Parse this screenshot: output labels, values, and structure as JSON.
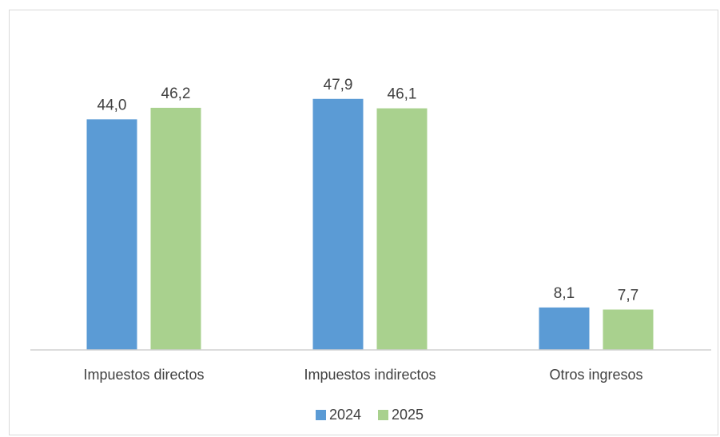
{
  "chart_data": {
    "type": "bar",
    "categories": [
      "Impuestos directos",
      "Impuestos indirectos",
      "Otros ingresos"
    ],
    "series": [
      {
        "name": "2024",
        "values": [
          44.0,
          47.9,
          8.1
        ],
        "labels": [
          "44,0",
          "47,9",
          "8,1"
        ],
        "color": "#5b9bd5"
      },
      {
        "name": "2025",
        "values": [
          46.2,
          46.1,
          7.7
        ],
        "labels": [
          "46,2",
          "46,1",
          "7,7"
        ],
        "color": "#a9d18e"
      }
    ],
    "legend_position": "bottom",
    "grid": false,
    "ylim": [
      0,
      60
    ]
  }
}
